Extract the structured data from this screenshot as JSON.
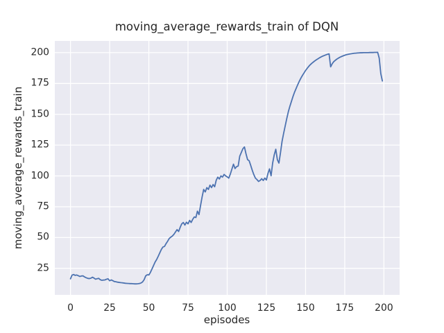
{
  "colors": {
    "figure_background": "#ffffff",
    "plot_background": "#eaeaf2",
    "grid": "#ffffff",
    "line": "#4c72b0",
    "text": "#262626"
  },
  "chart_data": {
    "type": "line",
    "title": "moving_average_rewards_train of DQN",
    "xlabel": "episodes",
    "ylabel": "moving_average_rewards_train",
    "grid": true,
    "legend": false,
    "xlim": [
      -10,
      210
    ],
    "ylim": [
      3.5,
      209.5
    ],
    "xticks": [
      0,
      25,
      50,
      75,
      100,
      125,
      150,
      175,
      200
    ],
    "yticks": [
      25,
      50,
      75,
      100,
      125,
      150,
      175,
      200
    ],
    "series": [
      {
        "name": "moving_average_rewards_train",
        "x_start": 0,
        "x_step": 1,
        "values": [
          16.5,
          19.5,
          20.0,
          19.3,
          19.6,
          19.0,
          18.4,
          18.8,
          18.9,
          18.0,
          17.4,
          16.9,
          16.7,
          17.0,
          17.8,
          17.1,
          16.2,
          16.6,
          16.9,
          15.8,
          15.3,
          15.5,
          15.6,
          16.2,
          16.5,
          14.9,
          15.6,
          15.0,
          14.3,
          14.1,
          13.8,
          13.6,
          13.4,
          13.3,
          13.1,
          12.9,
          12.8,
          12.7,
          12.6,
          12.6,
          12.5,
          12.4,
          12.4,
          12.5,
          12.7,
          13.1,
          14.0,
          15.8,
          18.9,
          19.8,
          19.6,
          21.7,
          24.5,
          27.3,
          30.1,
          32.2,
          34.8,
          37.6,
          40.4,
          42.3,
          42.8,
          45.1,
          47.0,
          49.2,
          50.3,
          51.2,
          52.6,
          54.5,
          56.4,
          54.9,
          58.3,
          61.1,
          62.2,
          60.1,
          62.4,
          61.1,
          63.9,
          62.2,
          64.8,
          66.7,
          66.2,
          71.4,
          68.6,
          76.0,
          83.0,
          89.0,
          87.0,
          90.5,
          89.0,
          92.5,
          90.5,
          93.0,
          91.2,
          96.5,
          99.0,
          97.5,
          100.0,
          99.0,
          101.2,
          100.0,
          99.2,
          98.2,
          101.5,
          105.5,
          109.5,
          106.0,
          107.5,
          108.0,
          116.0,
          119.0,
          122.0,
          123.5,
          117.9,
          113.2,
          112.3,
          108.5,
          104.5,
          101.0,
          98.2,
          97.0,
          95.5,
          96.3,
          97.7,
          96.3,
          98.2,
          96.7,
          102.0,
          105.7,
          100.1,
          110.4,
          117.0,
          121.6,
          113.2,
          110.4,
          118.8,
          128.0,
          134.5,
          140.5,
          146.5,
          152.0,
          156.5,
          160.5,
          164.5,
          168.0,
          171.0,
          174.0,
          176.8,
          179.3,
          181.5,
          183.5,
          185.5,
          187.2,
          188.8,
          190.2,
          191.4,
          192.4,
          193.4,
          194.3,
          195.1,
          195.9,
          196.6,
          197.2,
          197.7,
          198.2,
          198.7,
          199.0,
          188.5,
          191.0,
          192.7,
          193.8,
          194.8,
          195.6,
          196.3,
          196.9,
          197.4,
          197.9,
          198.3,
          198.6,
          198.9,
          199.1,
          199.3,
          199.5,
          199.6,
          199.7,
          199.8,
          199.9,
          199.9,
          200.0,
          200.0,
          200.0,
          200.0,
          200.1,
          200.1,
          200.1,
          200.2,
          200.2,
          200.3,
          195.5,
          183.0,
          177.0
        ]
      }
    ]
  }
}
